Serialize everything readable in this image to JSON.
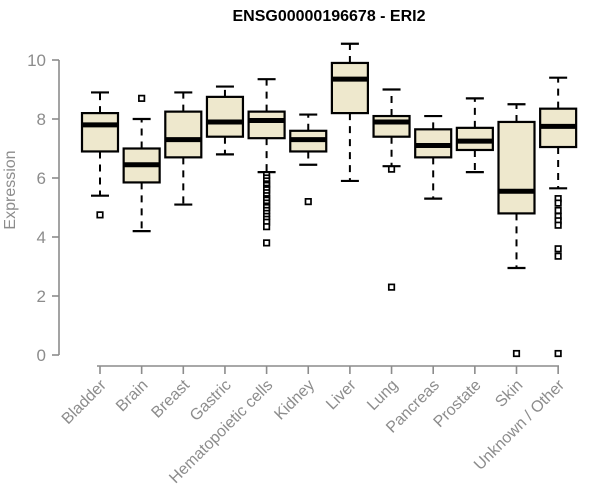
{
  "colors": {
    "background": "#FFFFFF",
    "box_fill": "#EEE8CD",
    "box_stroke": "#000000",
    "median": "#000000",
    "whisker": "#000000",
    "axis": "#8C8C8C",
    "axis_text": "#8C8C8C",
    "title_text": "#000000"
  },
  "chart_data": {
    "type": "boxplot",
    "title": "ENSG00000196678 - ERI2",
    "xlabel": "",
    "ylabel": "Expression",
    "ylim": [
      0,
      10.6
    ],
    "yticks": [
      0,
      2,
      4,
      6,
      8,
      10
    ],
    "grid": false,
    "legend": "none",
    "categories": [
      "Bladder",
      "Brain",
      "Breast",
      "Gastric",
      "Hematopoietic cells",
      "Kidney",
      "Liver",
      "Lung",
      "Pancreas",
      "Prostate",
      "Skin",
      "Unknown / Other"
    ],
    "series": [
      {
        "name": "Bladder",
        "whisker_low": 5.4,
        "q1": 6.9,
        "median": 7.8,
        "q3": 8.2,
        "whisker_high": 8.9,
        "outliers": [
          4.75
        ]
      },
      {
        "name": "Brain",
        "whisker_low": 4.2,
        "q1": 5.85,
        "median": 6.45,
        "q3": 7.0,
        "whisker_high": 8.0,
        "outliers": [
          8.7
        ]
      },
      {
        "name": "Breast",
        "whisker_low": 5.1,
        "q1": 6.7,
        "median": 7.3,
        "q3": 8.25,
        "whisker_high": 8.9,
        "outliers": []
      },
      {
        "name": "Gastric",
        "whisker_low": 6.8,
        "q1": 7.4,
        "median": 7.9,
        "q3": 8.75,
        "whisker_high": 9.1,
        "outliers": []
      },
      {
        "name": "Hematopoietic cells",
        "whisker_low": 6.2,
        "q1": 7.35,
        "median": 7.95,
        "q3": 8.25,
        "whisker_high": 9.35,
        "outliers": [
          6.1,
          6.0,
          5.9,
          5.8,
          5.75,
          5.65,
          5.6,
          5.5,
          5.4,
          5.3,
          5.25,
          5.15,
          5.05,
          5.0,
          4.9,
          4.8,
          4.7,
          4.6,
          4.5,
          4.35,
          3.8
        ]
      },
      {
        "name": "Kidney",
        "whisker_low": 6.45,
        "q1": 6.9,
        "median": 7.3,
        "q3": 7.6,
        "whisker_high": 8.15,
        "outliers": [
          5.2
        ]
      },
      {
        "name": "Liver",
        "whisker_low": 5.9,
        "q1": 8.2,
        "median": 9.35,
        "q3": 9.9,
        "whisker_high": 10.55,
        "outliers": []
      },
      {
        "name": "Lung",
        "whisker_low": 6.4,
        "q1": 7.4,
        "median": 7.9,
        "q3": 8.1,
        "whisker_high": 9.0,
        "outliers": [
          6.3,
          2.3
        ]
      },
      {
        "name": "Pancreas",
        "whisker_low": 5.3,
        "q1": 6.7,
        "median": 7.1,
        "q3": 7.65,
        "whisker_high": 8.1,
        "outliers": []
      },
      {
        "name": "Prostate",
        "whisker_low": 6.2,
        "q1": 6.95,
        "median": 7.25,
        "q3": 7.7,
        "whisker_high": 8.7,
        "outliers": []
      },
      {
        "name": "Skin",
        "whisker_low": 2.95,
        "q1": 4.8,
        "median": 5.55,
        "q3": 7.9,
        "whisker_high": 8.5,
        "outliers": [
          0.05
        ]
      },
      {
        "name": "Unknown / Other",
        "whisker_low": 5.65,
        "q1": 7.05,
        "median": 7.75,
        "q3": 8.35,
        "whisker_high": 9.4,
        "outliers": [
          5.3,
          5.15,
          4.9,
          4.7,
          4.55,
          4.4,
          3.6,
          3.35,
          0.05
        ]
      }
    ]
  }
}
